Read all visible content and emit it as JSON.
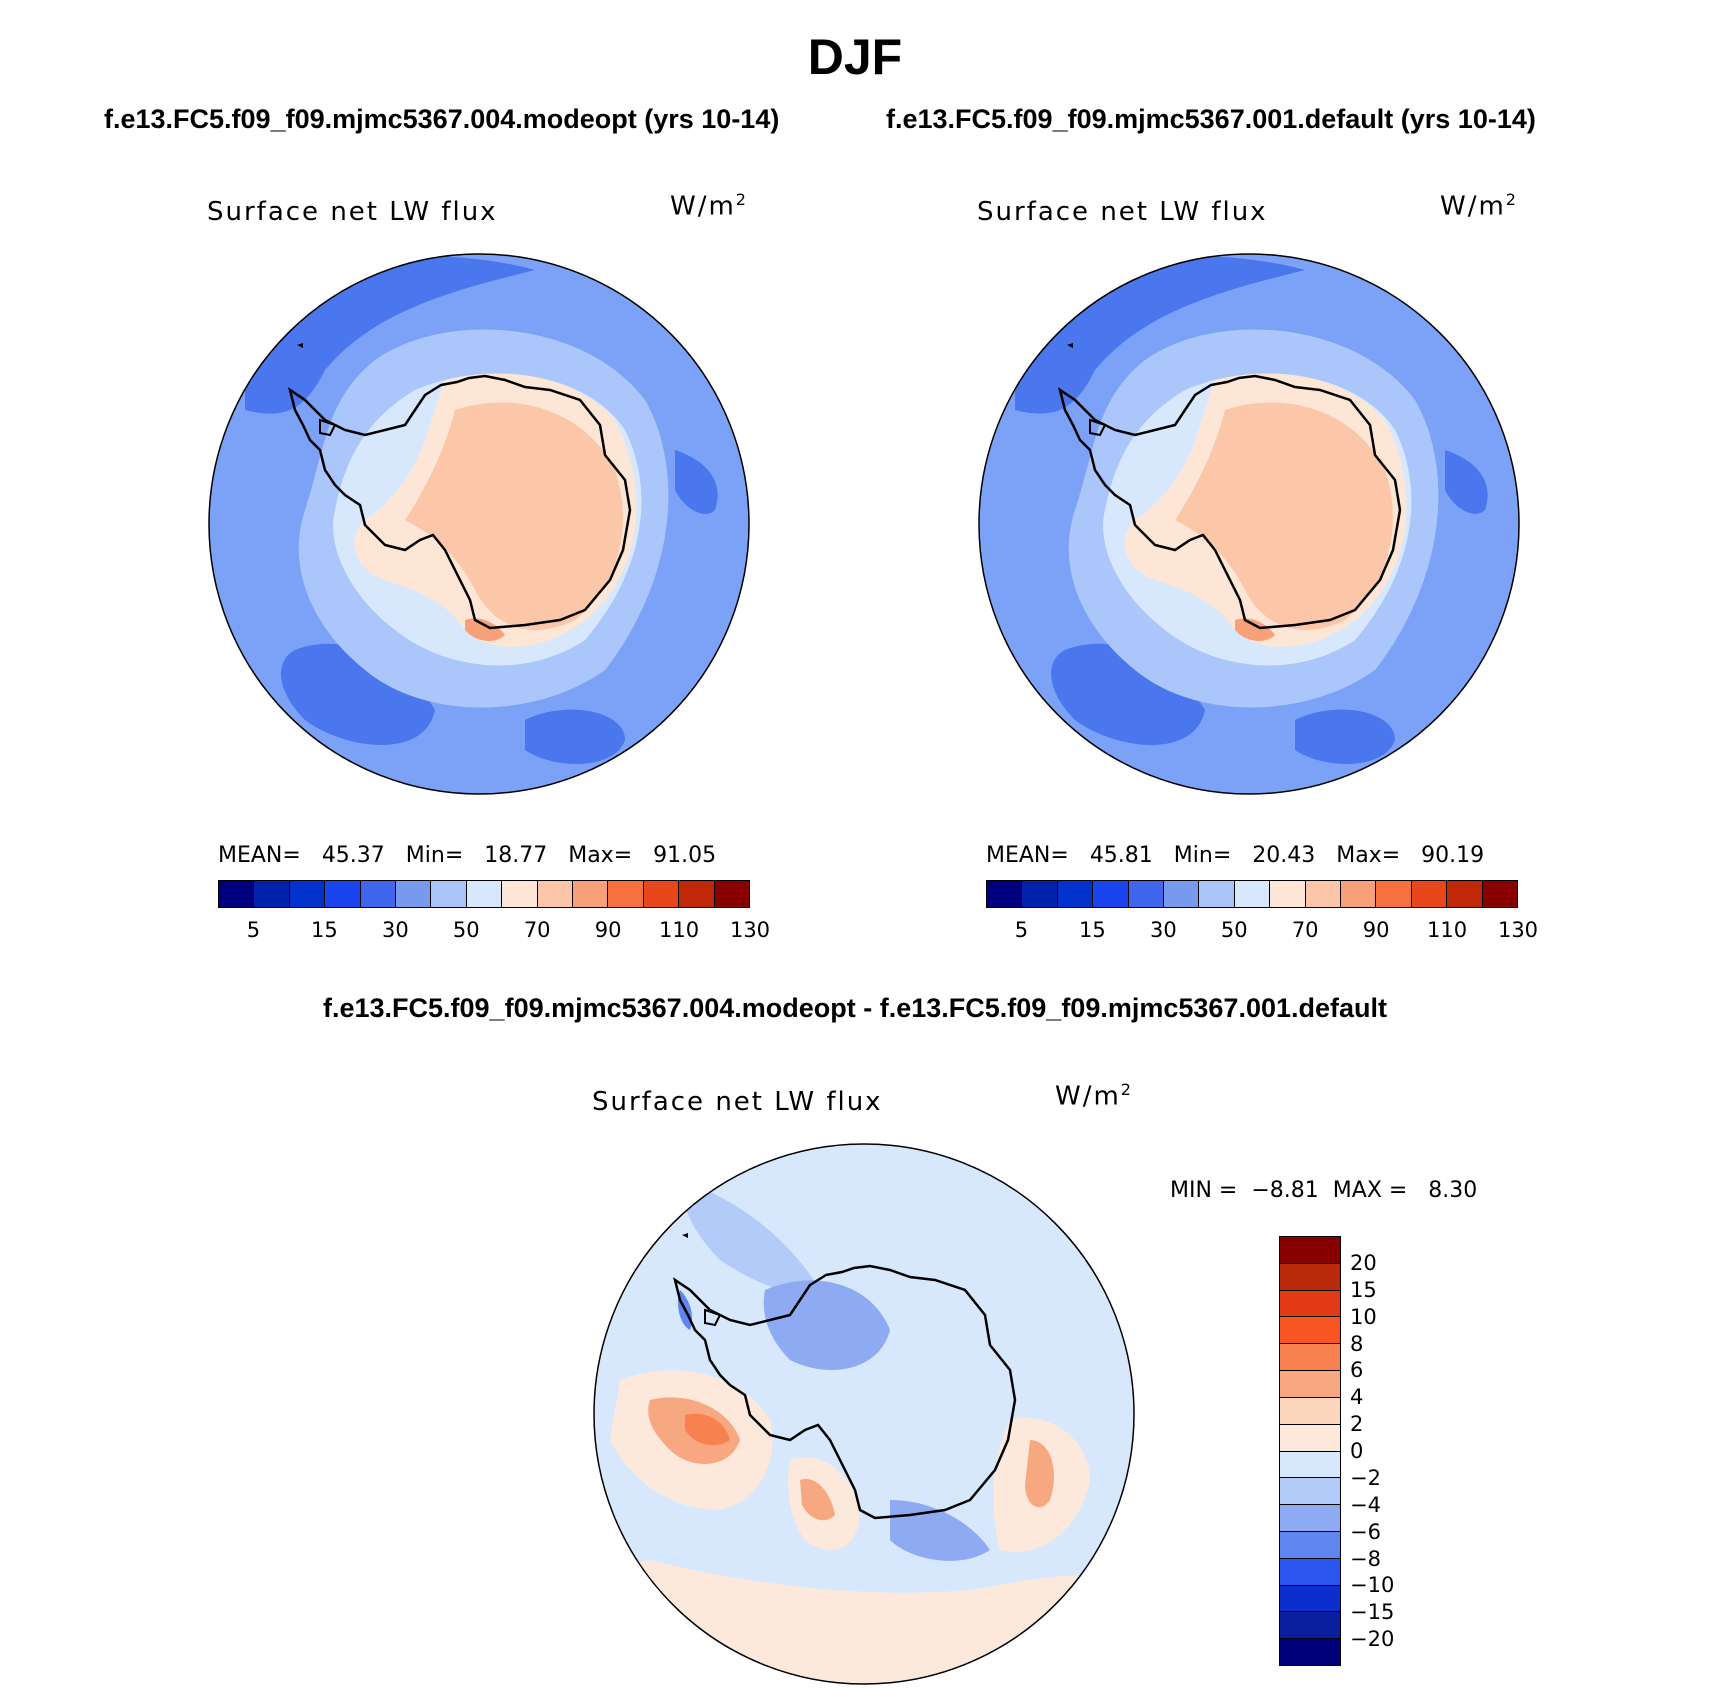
{
  "figure": {
    "season": "DJF",
    "case_a_label": "f.e13.FC5.f09_f09.mjmc5367.004.modeopt (yrs 10-14)",
    "case_b_label": "f.e13.FC5.f09_f09.mjmc5367.001.default (yrs 10-14)",
    "diff_label": "f.e13.FC5.f09_f09.mjmc5367.004.modeopt - f.e13.FC5.f09_f09.mjmc5367.001.default"
  },
  "panels": [
    {
      "variable": "Surface net LW flux",
      "units": "W/m",
      "units_sup": "2",
      "mean_label": "MEAN=",
      "mean": "45.37",
      "min_label": "Min=",
      "min": "18.77",
      "max_label": "Max=",
      "max": "91.05"
    },
    {
      "variable": "Surface net LW flux",
      "units": "W/m",
      "units_sup": "2",
      "mean_label": "MEAN=",
      "mean": "45.81",
      "min_label": "Min=",
      "min": "20.43",
      "max_label": "Max=",
      "max": "90.19"
    }
  ],
  "diff_panel": {
    "variable": "Surface net LW flux",
    "units": "W/m",
    "units_sup": "2",
    "min_label": "MIN =",
    "min": "−8.81",
    "max_label": "MAX =",
    "max": "8.30"
  },
  "colorbar_main": {
    "colors": [
      "#00007f",
      "#0022aa",
      "#0033cc",
      "#1a44ee",
      "#4066ee",
      "#7799ee",
      "#aac4f8",
      "#d8e8fc",
      "#fde6d6",
      "#fbc7a8",
      "#f8a07a",
      "#f7703f",
      "#e8461b",
      "#c02808",
      "#880000"
    ],
    "tick_labels": [
      "5",
      "15",
      "30",
      "50",
      "70",
      "90",
      "110",
      "130"
    ]
  },
  "colorbar_diff": {
    "colors": [
      "#880000",
      "#b82a0a",
      "#e23a14",
      "#f85523",
      "#f88150",
      "#f8a880",
      "#fcd6bd",
      "#fde9dc",
      "#d8e8fc",
      "#b2cbf8",
      "#8eaaf2",
      "#5e86ee",
      "#2a55ee",
      "#0b2ecc",
      "#0a1ea0",
      "#00007a"
    ],
    "tick_labels": [
      "20",
      "15",
      "10",
      "8",
      "6",
      "4",
      "2",
      "0",
      "−2",
      "−4",
      "−6",
      "−8",
      "−10",
      "−15",
      "−20"
    ]
  },
  "map_colors": {
    "ocean_dark": "#4a76ee",
    "ocean_mid": "#7ba2f6",
    "ocean_light": "#abc6fa",
    "coastal": "#d8e8fc",
    "land_light": "#fde6d6",
    "land": "#fbc7a8",
    "land_warm": "#f8a07a",
    "diff_zero_neg": "#d8e8fc",
    "diff_zero_pos": "#fde9dc"
  }
}
